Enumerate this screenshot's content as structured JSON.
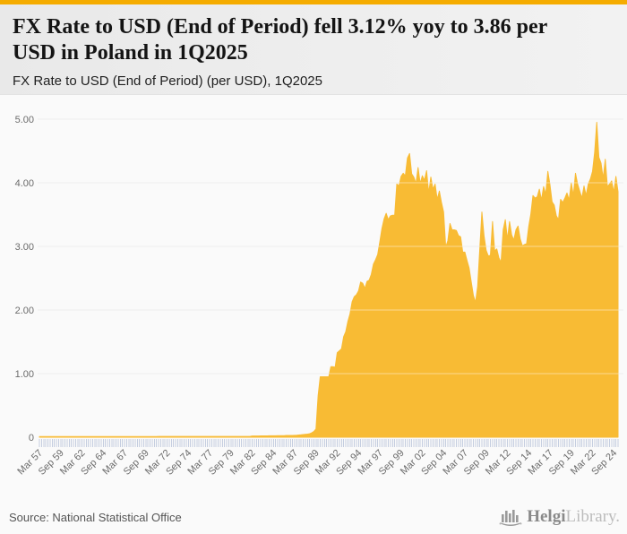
{
  "header": {
    "title": "FX Rate to USD (End of Period) fell 3.12% yoy to 3.86 per USD in Poland in 1Q2025",
    "subtitle": "FX Rate to USD (End of Period) (per USD), 1Q2025"
  },
  "footer": {
    "source": "Source: National Statistical Office",
    "brand": {
      "primary": "Helgi",
      "secondary": "Library.",
      "icon": "bar-chart-logo-icon"
    }
  },
  "colors": {
    "accent_topbar": "#f5ac00",
    "area_fill": "#f8bb34",
    "gridline": "#e1e1e1",
    "gridline_over_area": "rgba(255,255,255,0.45)",
    "quarter_tick": "#c5cee0",
    "axis_text": "#6b6b6b",
    "header_bg": "#ededed",
    "source_text": "#555555",
    "logo_dark": "#8a8a8a",
    "logo_light": "#bcbcbc"
  },
  "chart_data": {
    "type": "area",
    "title": "FX Rate to USD (End of Period) (per USD), 1Q2025",
    "xlabel": "",
    "ylabel": "",
    "ylim": [
      0,
      5
    ],
    "grid": true,
    "legend": false,
    "frequency": "quarterly",
    "x_start": "Mar 1957",
    "x_end": "Mar 2025",
    "x_tick_every": 10,
    "x_tick_labels": [
      "Mar 57",
      "Sep 59",
      "Mar 62",
      "Sep 64",
      "Mar 67",
      "Sep 69",
      "Mar 72",
      "Sep 74",
      "Mar 77",
      "Sep 79",
      "Mar 82",
      "Sep 84",
      "Mar 87",
      "Sep 89",
      "Mar 92",
      "Sep 94",
      "Mar 97",
      "Sep 99",
      "Mar 02",
      "Sep 04",
      "Mar 07",
      "Sep 09",
      "Mar 12",
      "Sep 14",
      "Mar 17",
      "Sep 19",
      "Mar 22",
      "Sep 24"
    ],
    "y_ticks": [
      {
        "label": "5.00",
        "value": 5
      },
      {
        "label": "4.00",
        "value": 4
      },
      {
        "label": "3.00",
        "value": 3
      },
      {
        "label": "2.00",
        "value": 2
      },
      {
        "label": "1.00",
        "value": 1
      },
      {
        "label": "0",
        "value": 0
      }
    ],
    "series": [
      {
        "name": "FX Rate to USD (End of Period), per USD",
        "color": "#f8bb34",
        "values": [
          0.01,
          0.01,
          0.01,
          0.01,
          0.01,
          0.01,
          0.01,
          0.01,
          0.01,
          0.01,
          0.01,
          0.01,
          0.01,
          0.01,
          0.01,
          0.01,
          0.01,
          0.01,
          0.01,
          0.01,
          0.01,
          0.01,
          0.01,
          0.01,
          0.01,
          0.01,
          0.01,
          0.01,
          0.01,
          0.01,
          0.01,
          0.01,
          0.01,
          0.01,
          0.01,
          0.01,
          0.01,
          0.01,
          0.01,
          0.01,
          0.01,
          0.01,
          0.01,
          0.01,
          0.01,
          0.01,
          0.01,
          0.01,
          0.01,
          0.01,
          0.01,
          0.01,
          0.01,
          0.01,
          0.01,
          0.01,
          0.012,
          0.012,
          0.012,
          0.012,
          0.012,
          0.012,
          0.012,
          0.012,
          0.012,
          0.012,
          0.012,
          0.012,
          0.012,
          0.012,
          0.012,
          0.012,
          0.012,
          0.012,
          0.012,
          0.012,
          0.012,
          0.012,
          0.012,
          0.012,
          0.012,
          0.012,
          0.012,
          0.012,
          0.012,
          0.012,
          0.012,
          0.012,
          0.012,
          0.012,
          0.012,
          0.012,
          0.012,
          0.012,
          0.012,
          0.012,
          0.012,
          0.012,
          0.012,
          0.012,
          0.02,
          0.02,
          0.02,
          0.02,
          0.021,
          0.021,
          0.021,
          0.021,
          0.023,
          0.023,
          0.023,
          0.023,
          0.025,
          0.025,
          0.025,
          0.025,
          0.028,
          0.028,
          0.028,
          0.028,
          0.03,
          0.032,
          0.035,
          0.038,
          0.042,
          0.046,
          0.05,
          0.055,
          0.07,
          0.09,
          0.13,
          0.65,
          0.95,
          0.95,
          0.95,
          0.95,
          0.95,
          1.11,
          1.11,
          1.1,
          1.33,
          1.36,
          1.39,
          1.58,
          1.66,
          1.82,
          1.94,
          2.13,
          2.21,
          2.24,
          2.3,
          2.44,
          2.42,
          2.34,
          2.45,
          2.47,
          2.56,
          2.72,
          2.79,
          2.87,
          3.07,
          3.28,
          3.43,
          3.52,
          3.42,
          3.48,
          3.49,
          3.49,
          3.98,
          3.95,
          4.1,
          4.15,
          4.11,
          4.39,
          4.46,
          4.14,
          4.09,
          3.99,
          4.24,
          3.99,
          4.11,
          4.04,
          4.19,
          3.84,
          4.09,
          3.9,
          3.98,
          3.74,
          3.87,
          3.69,
          3.54,
          2.99,
          3.09,
          3.36,
          3.26,
          3.26,
          3.25,
          3.17,
          3.15,
          2.91,
          2.91,
          2.78,
          2.66,
          2.44,
          2.23,
          2.12,
          2.37,
          2.96,
          3.54,
          3.17,
          2.94,
          2.85,
          2.86,
          3.39,
          2.93,
          2.96,
          2.82,
          2.75,
          3.26,
          3.42,
          3.11,
          3.39,
          3.18,
          3.1,
          3.26,
          3.32,
          3.12,
          3.01,
          3.03,
          3.04,
          3.31,
          3.51,
          3.8,
          3.76,
          3.78,
          3.9,
          3.73,
          3.94,
          3.82,
          4.18,
          3.97,
          3.7,
          3.65,
          3.48,
          3.42,
          3.74,
          3.69,
          3.76,
          3.84,
          3.73,
          4.0,
          3.8,
          4.15,
          3.98,
          3.87,
          3.76,
          3.95,
          3.8,
          3.98,
          4.06,
          4.18,
          4.48,
          4.95,
          4.4,
          4.31,
          4.07,
          4.37,
          3.94,
          3.98,
          4.03,
          3.85,
          4.1,
          3.86
        ]
      }
    ]
  }
}
